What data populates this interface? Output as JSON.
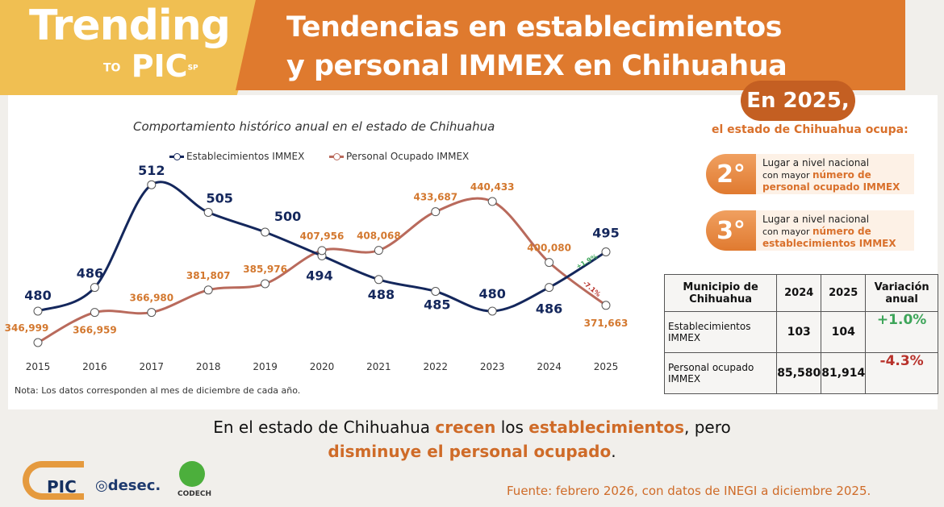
{
  "header": {
    "brand_line1": "Trending",
    "brand_to": "TO",
    "brand_pic": "PIC",
    "brand_sp": "SP",
    "title_line1": "Tendencias en establecimientos",
    "title_line2": "y personal IMMEX en Chihuahua"
  },
  "chart_data": {
    "type": "line",
    "title": "Comportamiento histórico anual en el estado de Chihuahua",
    "categories": [
      "2015",
      "2016",
      "2017",
      "2018",
      "2019",
      "2020",
      "2021",
      "2022",
      "2023",
      "2024",
      "2025"
    ],
    "series": [
      {
        "name": "Establecimientos IMMEX",
        "color": "#14275c",
        "values": [
          480,
          486,
          512,
          505,
          500,
          494,
          488,
          485,
          480,
          486,
          495
        ],
        "labels": [
          "480",
          "486",
          "512",
          "505",
          "500",
          "494",
          "488",
          "485",
          "480",
          "486",
          "495"
        ]
      },
      {
        "name": "Personal Ocupado IMMEX",
        "color": "#b96a5c",
        "values": [
          346999,
          366959,
          366980,
          381807,
          385976,
          407956,
          408068,
          433687,
          440433,
          400080,
          371663
        ],
        "labels": [
          "346,999",
          "366,959",
          "366,980",
          "381,807",
          "385,976",
          "407,956",
          "408,068",
          "433,687",
          "440,433",
          "400,080",
          "371,663"
        ]
      }
    ],
    "annotations": [
      {
        "text": "+1.9%",
        "color": "#3ea55a"
      },
      {
        "text": "-7.1%",
        "color": "#b8322b"
      }
    ],
    "note": "Nota: Los datos corresponden al mes de diciembre de cada año.",
    "legend": "top"
  },
  "side": {
    "en2025": "En 2025,",
    "ocupa": "el estado de Chihuahua ocupa:",
    "ranks": [
      {
        "num": "2°",
        "line1": "Lugar a nivel nacional",
        "line2": "con mayor ",
        "hl1": "número de",
        "hl2": "personal ocupado IMMEX"
      },
      {
        "num": "3°",
        "line1": "Lugar a nivel nacional",
        "line2": "con mayor ",
        "hl1": "número de",
        "hl2": "establecimientos IMMEX"
      }
    ]
  },
  "table": {
    "headers": [
      "Municipio de Chihuahua",
      "2024",
      "2025",
      "Variación anual"
    ],
    "rows": [
      [
        "Establecimientos IMMEX",
        "103",
        "104",
        "+1.0%"
      ],
      [
        "Personal ocupado IMMEX",
        "85,580",
        "81,914",
        "-4.3%"
      ]
    ]
  },
  "conclusion": {
    "p1": "En el estado de Chihuahua ",
    "b1": "crecen",
    "p2": " los ",
    "b2": "establecimientos",
    "p3": ", pero",
    "b3": "disminuye el personal ocupado",
    "p4": "."
  },
  "footer": {
    "source": "Fuente: febrero 2026, con datos de INEGI a diciembre 2025.",
    "logo1": "PIC",
    "logo2": "desec.",
    "logo3": "CODECH"
  }
}
